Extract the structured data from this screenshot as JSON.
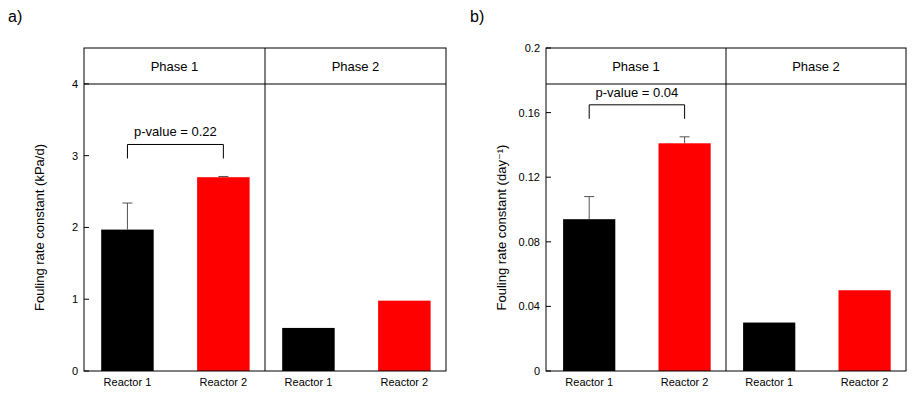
{
  "chart_data": [
    {
      "type": "bar",
      "panel_label": "a)",
      "y_label": "Fouling rate constant (kPa/d)",
      "group_labels": [
        "Phase 1",
        "Phase 2"
      ],
      "categories": [
        "Reactor 1",
        "Reactor 2",
        "Reactor 1",
        "Reactor 2"
      ],
      "values": [
        1.97,
        2.7,
        0.6,
        0.98
      ],
      "error": [
        0.37,
        0.01,
        null,
        null
      ],
      "colors": [
        "#000000",
        "#ff0000",
        "#000000",
        "#ff0000"
      ],
      "ylim": [
        0,
        4.5
      ],
      "yticks": [
        0,
        1,
        2,
        3,
        4
      ],
      "annotations": [
        {
          "text": "p-value = 0.22"
        }
      ]
    },
    {
      "type": "bar",
      "panel_label": "b)",
      "y_label": "Fouling rate constant (day⁻¹)",
      "group_labels": [
        "Phase 1",
        "Phase 2"
      ],
      "categories": [
        "Reactor 1",
        "Reactor 2",
        "Reactor 1",
        "Reactor 2"
      ],
      "values": [
        0.094,
        0.141,
        0.03,
        0.05
      ],
      "error": [
        0.014,
        0.004,
        null,
        null
      ],
      "colors": [
        "#000000",
        "#ff0000",
        "#000000",
        "#ff0000"
      ],
      "ylim": [
        0,
        0.2
      ],
      "yticks": [
        0,
        0.04,
        0.08,
        0.12,
        0.16,
        0.2
      ],
      "annotations": [
        {
          "text": "p-value = 0.04"
        }
      ]
    }
  ]
}
